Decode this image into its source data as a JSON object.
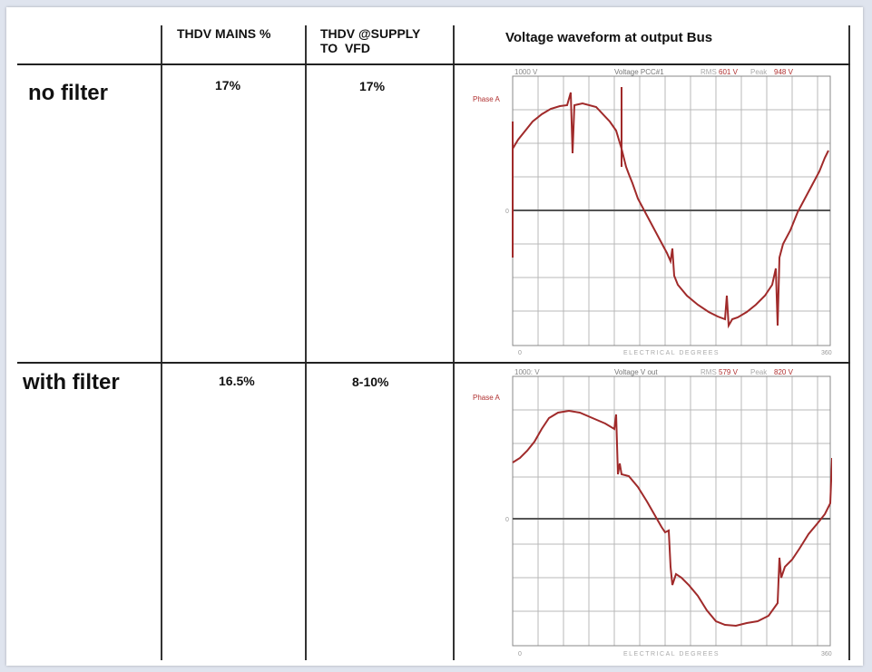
{
  "table": {
    "headers": [
      "",
      "THDV MAINS %",
      "THDV @SUPPLY\nTO  VFD",
      "Voltage waveform at output Bus"
    ],
    "rows": [
      {
        "label": "no filter",
        "thdv_mains": "17%",
        "thdv_supply": "17%",
        "scope": {
          "scale": "1000 V",
          "title": "Voltage PCC#1",
          "rms_label": "RMS",
          "rms_value": "601 V",
          "peak_label": "Peak",
          "peak_value": "948 V",
          "phase": "Phase A",
          "zero": "0",
          "x_start": "0",
          "x_end": "360",
          "x_axis": "ELECTRICAL DEGREES"
        }
      },
      {
        "label": "with filter",
        "thdv_mains": "16.5%",
        "thdv_supply": "8-10%",
        "scope": {
          "scale": "1000: V",
          "title": "Voltage V out",
          "rms_label": "RMS",
          "rms_value": "579 V",
          "peak_label": "Peak",
          "peak_value": "820 V",
          "phase": "Phase A",
          "zero": "0",
          "x_start": "0",
          "x_end": "360",
          "x_axis": "ELECTRICAL DEGREES"
        }
      }
    ]
  },
  "colors": {
    "trace": "#a02a2a",
    "grid": "#b8b8b8",
    "label": "#8a8a8a",
    "phase": "#b03030"
  }
}
